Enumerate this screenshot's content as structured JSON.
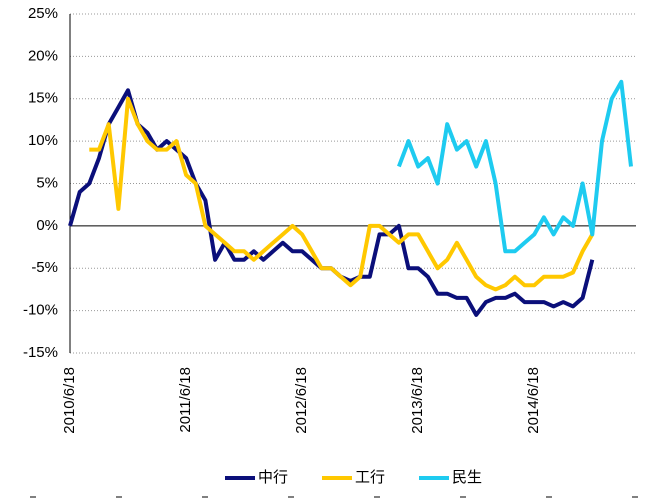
{
  "chart_data": {
    "type": "line",
    "categories": [
      "2010/6/18",
      null,
      null,
      null,
      null,
      null,
      null,
      null,
      null,
      null,
      null,
      null,
      "2011/6/18",
      null,
      null,
      null,
      null,
      null,
      null,
      null,
      null,
      null,
      null,
      null,
      "2012/6/18",
      null,
      null,
      null,
      null,
      null,
      null,
      null,
      null,
      null,
      null,
      null,
      "2013/6/18",
      null,
      null,
      null,
      null,
      null,
      null,
      null,
      null,
      null,
      null,
      null,
      "2014/6/18",
      null,
      null,
      null,
      null,
      null,
      null,
      null,
      null,
      null,
      null
    ],
    "series": [
      {
        "name": "中行",
        "color": "#0b0f7a",
        "values": [
          0,
          4,
          5,
          8,
          12,
          14,
          16,
          12,
          11,
          9,
          10,
          9,
          8,
          5,
          3,
          -4,
          -2,
          -4,
          -4,
          -3,
          -4,
          -3,
          -2,
          -3,
          -3,
          -4,
          -5,
          -5,
          -6,
          -6.5,
          -6,
          -6,
          -1,
          -1,
          0,
          -5,
          -5,
          -6,
          -8,
          -8,
          -8.5,
          -8.5,
          -10.5,
          -9,
          -8.5,
          -8.5,
          -8,
          -9,
          -9,
          -9,
          -9.5,
          -9,
          -9.5,
          -8.5,
          -4,
          null,
          null,
          null,
          null
        ]
      },
      {
        "name": "工行",
        "color": "#ffc800",
        "values": [
          null,
          null,
          9,
          9,
          12,
          2,
          15,
          12,
          10,
          9,
          9,
          10,
          6,
          5,
          0,
          -1,
          -2,
          -3,
          -3,
          -4,
          -3,
          -2,
          -1,
          0,
          -1,
          -3,
          -5,
          -5,
          -6,
          -7,
          -6,
          0,
          0,
          -1,
          -2,
          -1,
          -1,
          -3,
          -5,
          -4,
          -2,
          -4,
          -6,
          -7,
          -7.5,
          -7,
          -6,
          -7,
          -7,
          -6,
          -6,
          -6,
          -5.5,
          -3,
          -1,
          null,
          null,
          null,
          null
        ]
      },
      {
        "name": "民生",
        "color": "#1ecbf0",
        "values": [
          null,
          null,
          null,
          null,
          null,
          null,
          null,
          null,
          null,
          null,
          null,
          null,
          null,
          null,
          null,
          null,
          null,
          null,
          null,
          null,
          null,
          null,
          null,
          null,
          null,
          null,
          null,
          null,
          null,
          null,
          null,
          null,
          null,
          null,
          7,
          10,
          7,
          8,
          5,
          12,
          9,
          10,
          7,
          10,
          5,
          -3,
          -3,
          -2,
          -1,
          1,
          -1,
          1,
          0,
          5,
          -1,
          10,
          15,
          17,
          7
        ]
      }
    ],
    "ylim": [
      -15,
      25
    ],
    "yticks": [
      {
        "value": -15,
        "label": "-15%"
      },
      {
        "value": -10,
        "label": "-10%"
      },
      {
        "value": -5,
        "label": "-5%"
      },
      {
        "value": 0,
        "label": "0%"
      },
      {
        "value": 5,
        "label": "5%"
      },
      {
        "value": 10,
        "label": "10%"
      },
      {
        "value": 15,
        "label": "15%"
      },
      {
        "value": 20,
        "label": "20%"
      },
      {
        "value": 25,
        "label": "25%"
      }
    ],
    "grid": true,
    "legend": "bottom"
  }
}
